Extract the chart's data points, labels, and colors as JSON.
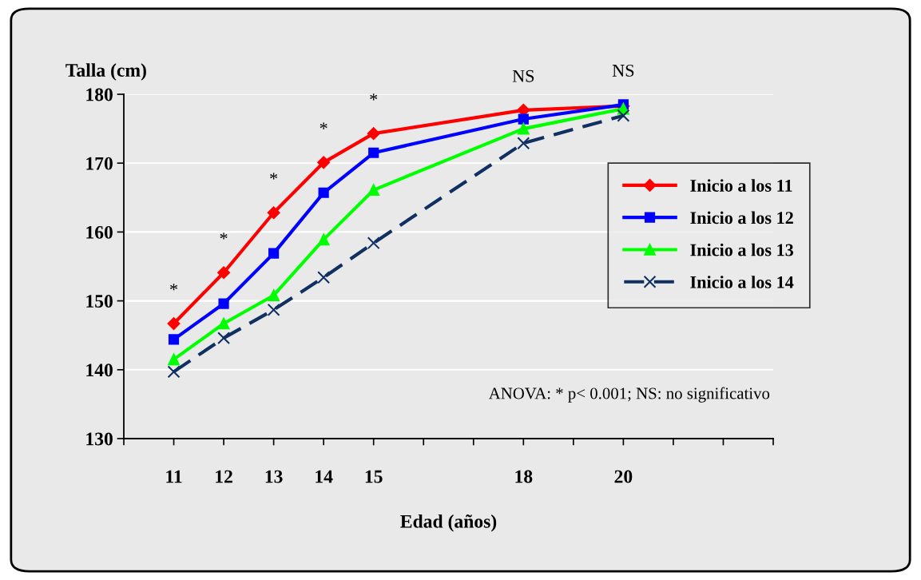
{
  "chart_data": {
    "type": "line",
    "xlabel": "Edad (años)",
    "ylabel": "Talla (cm)",
    "x": [
      11,
      12,
      13,
      14,
      15,
      18,
      20
    ],
    "series": [
      {
        "name": "Inicio a los 11",
        "color": "#ff0000",
        "marker": "diamond",
        "line_style": "solid",
        "values": [
          146.7,
          154.1,
          162.8,
          170.1,
          174.3,
          177.7,
          178.3
        ]
      },
      {
        "name": "Inicio a los 12",
        "color": "#0000ff",
        "marker": "square",
        "line_style": "solid",
        "values": [
          144.4,
          149.6,
          156.9,
          165.7,
          171.5,
          176.4,
          178.5
        ]
      },
      {
        "name": "Inicio a los 13",
        "color": "#00ff00",
        "marker": "triangle",
        "line_style": "solid",
        "values": [
          141.5,
          146.7,
          150.8,
          158.9,
          166.1,
          175.0,
          177.9
        ]
      },
      {
        "name": "Inicio a los 14",
        "color": "#0f3060",
        "marker": "cross",
        "line_style": "dashed",
        "values": [
          139.7,
          144.6,
          148.7,
          153.4,
          158.4,
          172.9,
          176.9
        ]
      }
    ],
    "xlim": [
      10,
      23
    ],
    "xticks": [
      {
        "value": 10,
        "label": null
      },
      11,
      12,
      13,
      14,
      15,
      {
        "value": 16,
        "label": null
      },
      {
        "value": 17,
        "label": null
      },
      18,
      {
        "value": 19,
        "label": null
      },
      20,
      {
        "value": 21,
        "label": null
      },
      {
        "value": 22,
        "label": null
      },
      {
        "value": 23,
        "label": null
      }
    ],
    "ylim": [
      130,
      180
    ],
    "yticks": [
      130,
      140,
      150,
      160,
      170,
      180
    ],
    "grid": "y",
    "legend": "right",
    "annotations": [
      {
        "text": "*",
        "x": 11,
        "y": 146.7
      },
      {
        "text": "*",
        "x": 12,
        "y": 154.1
      },
      {
        "text": "*",
        "x": 13,
        "y": 162.8
      },
      {
        "text": "*",
        "x": 14,
        "y": 170.1
      },
      {
        "text": "*",
        "x": 15,
        "y": 174.3
      },
      {
        "text": "NS",
        "x": 18,
        "y": 177.7
      },
      {
        "text": "NS",
        "x": 20,
        "y": 178.5
      },
      "ANOVA: * p< 0.001; NS: no significativo"
    ]
  }
}
